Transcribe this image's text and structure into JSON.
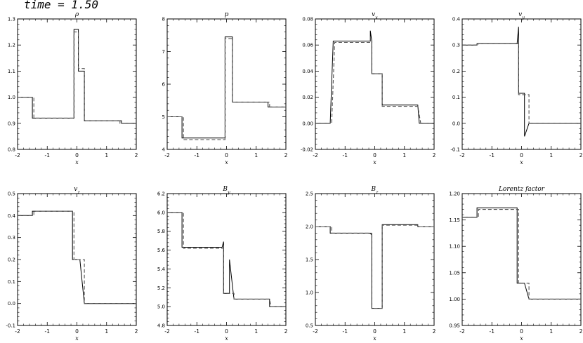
{
  "figure_title": "time =  1.50",
  "chart_data": [
    {
      "type": "line",
      "title": "ρ",
      "xlabel": "x",
      "ylabel": "",
      "xlim": [
        -2,
        2
      ],
      "ylim": [
        0.8,
        1.3
      ],
      "x_ticks": [
        "-2",
        "-1",
        "0",
        "1",
        "2"
      ],
      "y_ticks": [
        "0.8",
        "0.9",
        "1.0",
        "1.1",
        "1.2",
        "1.3"
      ],
      "series": [
        {
          "style": "solid",
          "x": [
            -2.0,
            -1.5,
            -1.5,
            -0.1,
            -0.1,
            0.05,
            0.05,
            0.25,
            0.25,
            1.5,
            1.5,
            2.0
          ],
          "y": [
            1.0,
            1.0,
            0.92,
            0.92,
            1.26,
            1.26,
            1.1,
            1.1,
            0.91,
            0.91,
            0.9,
            0.9
          ]
        },
        {
          "style": "dashed",
          "x": [
            -2.0,
            -1.45,
            -1.45,
            -0.1,
            -0.1,
            0.05,
            0.05,
            0.25,
            0.25,
            1.45,
            1.45,
            2.0
          ],
          "y": [
            1.0,
            1.0,
            0.92,
            0.92,
            1.25,
            1.25,
            1.11,
            1.11,
            0.91,
            0.91,
            0.9,
            0.9
          ]
        }
      ]
    },
    {
      "type": "line",
      "title": "p",
      "xlabel": "x",
      "ylabel": "",
      "xlim": [
        -2,
        2
      ],
      "ylim": [
        4,
        8
      ],
      "x_ticks": [
        "-2",
        "-1",
        "0",
        "1",
        "2"
      ],
      "y_ticks": [
        "4",
        "5",
        "6",
        "7",
        "8"
      ],
      "series": [
        {
          "style": "solid",
          "x": [
            -2.0,
            -1.5,
            -1.5,
            -0.05,
            -0.05,
            0.2,
            0.2,
            1.4,
            1.4,
            2.0
          ],
          "y": [
            5.0,
            5.0,
            4.35,
            4.35,
            7.45,
            7.45,
            5.45,
            5.45,
            5.3,
            5.3
          ]
        },
        {
          "style": "dashed",
          "x": [
            -2.0,
            -1.45,
            -1.45,
            -0.05,
            -0.05,
            0.2,
            0.2,
            1.45,
            1.45,
            2.0
          ],
          "y": [
            5.0,
            5.0,
            4.3,
            4.3,
            7.4,
            7.4,
            5.45,
            5.45,
            5.3,
            5.3
          ]
        }
      ]
    },
    {
      "type": "line",
      "title": "v_x",
      "xlabel": "x",
      "ylabel": "",
      "xlim": [
        -2,
        2
      ],
      "ylim": [
        -0.02,
        0.08
      ],
      "x_ticks": [
        "-2",
        "-1",
        "0",
        "1",
        "2"
      ],
      "y_ticks": [
        "-0.02",
        "0.00",
        "0.02",
        "0.04",
        "0.06",
        "0.08"
      ],
      "series": [
        {
          "style": "solid",
          "x": [
            -2.0,
            -1.5,
            -1.4,
            -0.15,
            -0.15,
            -0.1,
            -0.1,
            0.25,
            0.25,
            1.45,
            1.5,
            2.0
          ],
          "y": [
            0.0,
            0.0,
            0.063,
            0.063,
            0.071,
            0.063,
            0.038,
            0.038,
            0.014,
            0.014,
            0.0,
            0.0
          ]
        },
        {
          "style": "dashed",
          "x": [
            -2.0,
            -1.45,
            -1.35,
            -0.1,
            -0.1,
            0.25,
            0.25,
            1.45,
            1.55,
            2.0
          ],
          "y": [
            0.0,
            0.0,
            0.062,
            0.062,
            0.038,
            0.038,
            0.013,
            0.013,
            0.0,
            0.0
          ]
        }
      ]
    },
    {
      "type": "line",
      "title": "v_y",
      "xlabel": "x",
      "ylabel": "",
      "xlim": [
        -2,
        2
      ],
      "ylim": [
        -0.1,
        0.4
      ],
      "x_ticks": [
        "-2",
        "-1",
        "0",
        "1",
        "2"
      ],
      "y_ticks": [
        "-0.1",
        "0.0",
        "0.1",
        "0.2",
        "0.3",
        "0.4"
      ],
      "series": [
        {
          "style": "solid",
          "x": [
            -2.0,
            -1.5,
            -1.5,
            -0.15,
            -0.1,
            -0.1,
            0.1,
            0.1,
            0.25,
            0.25,
            2.0
          ],
          "y": [
            0.3,
            0.3,
            0.305,
            0.305,
            0.37,
            0.115,
            0.115,
            -0.05,
            0.0,
            0.0,
            0.0
          ]
        },
        {
          "style": "dashed",
          "x": [
            -2.0,
            -1.45,
            -1.45,
            -0.1,
            -0.1,
            0.1,
            0.25,
            0.25,
            2.0
          ],
          "y": [
            0.3,
            0.3,
            0.305,
            0.305,
            0.11,
            0.11,
            0.11,
            0.0,
            0.0
          ]
        }
      ]
    },
    {
      "type": "line",
      "title": "v_z",
      "xlabel": "x",
      "ylabel": "",
      "xlim": [
        -2,
        2
      ],
      "ylim": [
        -0.1,
        0.5
      ],
      "x_ticks": [
        "-2",
        "-1",
        "0",
        "1",
        "2"
      ],
      "y_ticks": [
        "-0.1",
        "0.0",
        "0.1",
        "0.2",
        "0.3",
        "0.4",
        "0.5"
      ],
      "series": [
        {
          "style": "solid",
          "x": [
            -2.0,
            -1.5,
            -1.5,
            -0.15,
            -0.15,
            0.1,
            0.1,
            0.25,
            0.25,
            2.0
          ],
          "y": [
            0.4,
            0.4,
            0.42,
            0.42,
            0.2,
            0.2,
            0.2,
            0.0,
            0.0,
            0.0
          ]
        },
        {
          "style": "dashed",
          "x": [
            -2.0,
            -1.45,
            -1.45,
            -0.1,
            -0.1,
            0.25,
            0.25,
            2.0
          ],
          "y": [
            0.4,
            0.4,
            0.42,
            0.42,
            0.2,
            0.2,
            0.0,
            0.0
          ]
        }
      ]
    },
    {
      "type": "line",
      "title": "B_y",
      "xlabel": "x",
      "ylabel": "",
      "xlim": [
        -2,
        2
      ],
      "ylim": [
        4.8,
        6.2
      ],
      "x_ticks": [
        "-2",
        "-1",
        "0",
        "1",
        "2"
      ],
      "y_ticks": [
        "4.8",
        "5.0",
        "5.2",
        "5.4",
        "5.6",
        "5.8",
        "6.0",
        "6.2"
      ],
      "series": [
        {
          "style": "solid",
          "x": [
            -2.0,
            -1.5,
            -1.5,
            -0.15,
            -0.1,
            -0.1,
            0.1,
            0.1,
            0.25,
            0.25,
            1.45,
            1.45,
            2.0
          ],
          "y": [
            6.0,
            6.0,
            5.63,
            5.63,
            5.69,
            5.14,
            5.14,
            5.5,
            5.08,
            5.08,
            5.08,
            5.0,
            5.0
          ]
        },
        {
          "style": "dashed",
          "x": [
            -2.0,
            -1.45,
            -1.45,
            -0.1,
            -0.1,
            0.25,
            0.25,
            1.45,
            1.5,
            2.0
          ],
          "y": [
            6.0,
            6.0,
            5.62,
            5.62,
            5.14,
            5.14,
            5.08,
            5.08,
            5.0,
            5.0
          ]
        }
      ]
    },
    {
      "type": "line",
      "title": "B_z",
      "xlabel": "x",
      "ylabel": "",
      "xlim": [
        -2,
        2
      ],
      "ylim": [
        0.5,
        2.5
      ],
      "x_ticks": [
        "-2",
        "-1",
        "0",
        "1",
        "2"
      ],
      "y_ticks": [
        "0.5",
        "1.0",
        "1.5",
        "2.0",
        "2.5"
      ],
      "series": [
        {
          "style": "solid",
          "x": [
            -2.0,
            -1.5,
            -1.5,
            -0.15,
            -0.1,
            -0.1,
            0.25,
            0.25,
            1.45,
            1.45,
            2.0
          ],
          "y": [
            2.0,
            2.0,
            1.9,
            1.9,
            1.87,
            0.76,
            0.76,
            2.03,
            2.03,
            2.0,
            2.0
          ]
        },
        {
          "style": "dashed",
          "x": [
            -2.0,
            -1.45,
            -1.45,
            -0.1,
            -0.1,
            0.25,
            0.25,
            1.45,
            1.5,
            2.0
          ],
          "y": [
            2.0,
            2.0,
            1.9,
            1.9,
            0.76,
            0.76,
            2.02,
            2.02,
            2.0,
            2.0
          ]
        }
      ]
    },
    {
      "type": "line",
      "title": "Lorentz factor",
      "xlabel": "x",
      "ylabel": "",
      "xlim": [
        -2,
        2
      ],
      "ylim": [
        0.95,
        1.2
      ],
      "x_ticks": [
        "-2",
        "-1",
        "0",
        "1",
        "2"
      ],
      "y_ticks": [
        "0.95",
        "1.00",
        "1.05",
        "1.10",
        "1.15",
        "1.20"
      ],
      "series": [
        {
          "style": "solid",
          "x": [
            -2.0,
            -1.5,
            -1.5,
            -0.15,
            -0.15,
            0.1,
            0.1,
            0.25,
            0.25,
            2.0
          ],
          "y": [
            1.155,
            1.155,
            1.173,
            1.173,
            1.03,
            1.03,
            1.03,
            1.0,
            1.0,
            1.0
          ]
        },
        {
          "style": "dashed",
          "x": [
            -2.0,
            -1.45,
            -1.45,
            -0.1,
            -0.1,
            0.25,
            0.25,
            2.0
          ],
          "y": [
            1.155,
            1.155,
            1.17,
            1.17,
            1.03,
            1.03,
            1.0,
            1.0
          ]
        }
      ]
    }
  ]
}
